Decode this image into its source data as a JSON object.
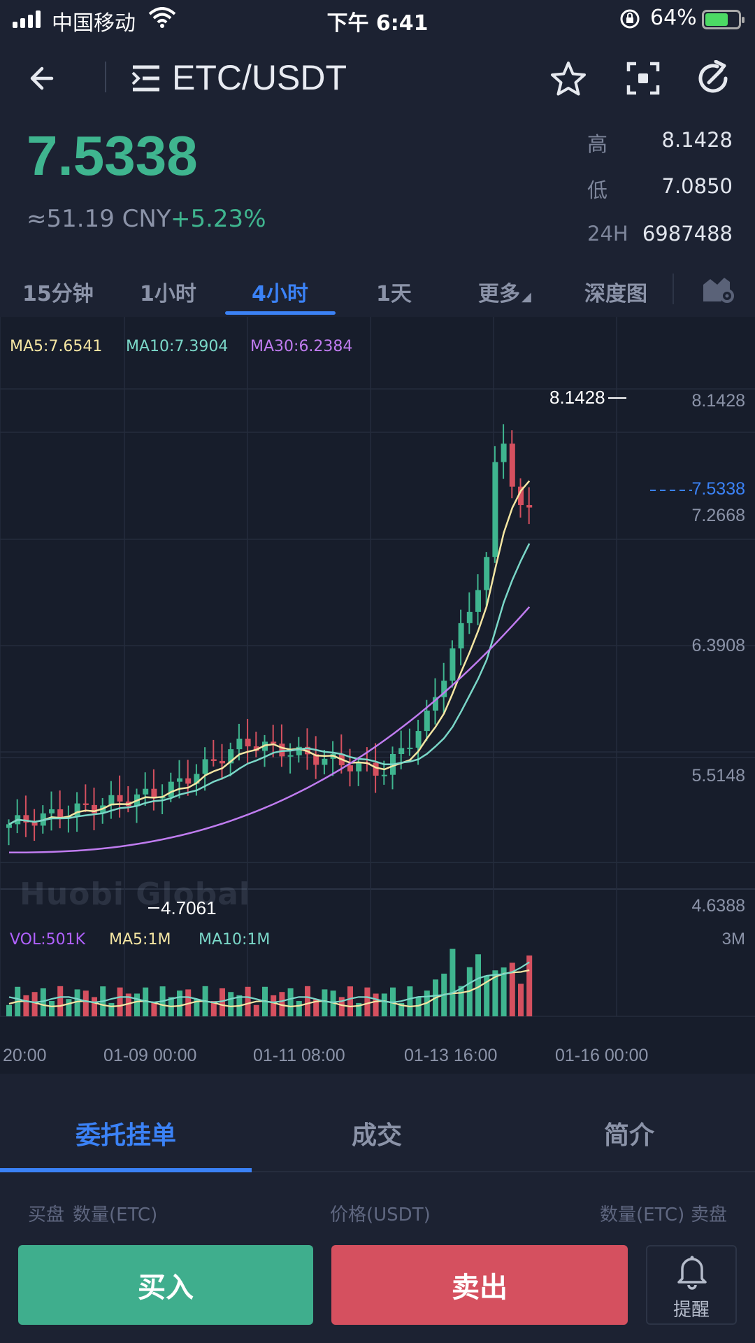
{
  "status_bar": {
    "carrier": "中国移动",
    "time": "下午 6:41",
    "battery": "64%"
  },
  "header": {
    "pair": "ETC/USDT"
  },
  "ticker": {
    "last_price": "7.5338",
    "cny": "≈51.19 CNY",
    "change": "+5.23%",
    "stats": [
      {
        "label": "高",
        "value": "8.1428"
      },
      {
        "label": "低",
        "value": "7.0850"
      },
      {
        "label": "24H",
        "value": "6987488"
      }
    ]
  },
  "tabs": [
    "15分钟",
    "1小时",
    "4小时",
    "1天",
    "更多",
    "深度图"
  ],
  "active_tab": "4小时",
  "chart_data": {
    "type": "candlestick",
    "indicators": {
      "ma5": "MA5:7.6541",
      "ma10": "MA10:7.3904",
      "ma30": "MA30:6.2384"
    },
    "volume_legend": {
      "vol": "VOL:501K",
      "ma5": "MA5:1M",
      "ma10": "MA10:1M"
    },
    "y_ticks": [
      "8.1428",
      "7.2668",
      "6.3908",
      "5.5148",
      "4.6388"
    ],
    "volume_max_label": "3M",
    "x_labels": [
      "20:00",
      "01-09 00:00",
      "01-11 08:00",
      "01-13 16:00",
      "01-16 00:00"
    ],
    "high_marker": "8.1428",
    "low_marker": "4.7061",
    "current_price_marker": "7.5338",
    "watermark": "Huobi Global",
    "colors": {
      "up": "#3fb58f",
      "down": "#d5505f",
      "ma5": "#f5e6a3",
      "ma10": "#7ad7c8",
      "ma30": "#c07cf0"
    }
  },
  "order_section": {
    "tabs": [
      "委托挂单",
      "成交",
      "简介"
    ],
    "header": {
      "buy": "买盘",
      "buy_qty": "数量(ETC)",
      "price": "价格(USDT)",
      "sell_qty": "数量(ETC)",
      "sell": "卖盘"
    }
  },
  "actions": {
    "buy": "买入",
    "sell": "卖出",
    "alert": "提醒"
  }
}
